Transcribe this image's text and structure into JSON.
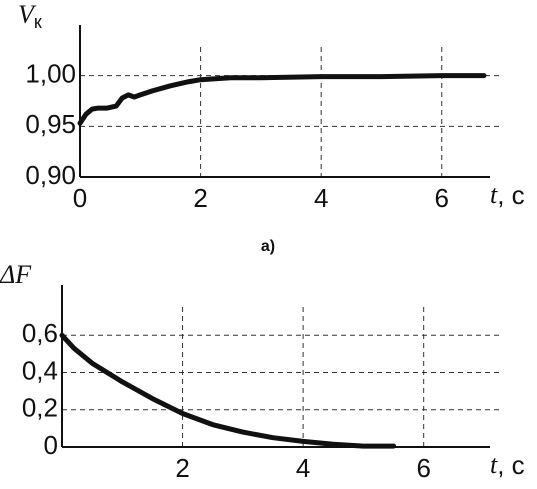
{
  "chart_data": [
    {
      "type": "line",
      "y_label": "V",
      "y_label_sub": "к",
      "x_label": "t",
      "x_unit": ", с",
      "caption": "а)",
      "x": [
        0,
        0.1,
        0.2,
        0.3,
        0.45,
        0.6,
        0.7,
        0.8,
        0.9,
        1.0,
        1.2,
        1.5,
        1.8,
        2.0,
        2.5,
        3.0,
        4.0,
        5.0,
        6.0,
        6.7
      ],
      "series": [
        {
          "color": "#111111",
          "values": [
            0.953,
            0.962,
            0.967,
            0.968,
            0.968,
            0.97,
            0.978,
            0.981,
            0.979,
            0.981,
            0.985,
            0.99,
            0.994,
            0.996,
            0.998,
            0.998,
            0.999,
            0.999,
            1.0,
            1.0
          ]
        }
      ],
      "xlim": [
        0,
        6.8
      ],
      "ylim": [
        0.9,
        1.05
      ],
      "xticks": [
        0,
        2,
        4,
        6
      ],
      "yticks": [
        {
          "value": 0.9,
          "label": "0,90"
        },
        {
          "value": 0.95,
          "label": "0,95"
        },
        {
          "value": 1.0,
          "label": "1,00"
        }
      ],
      "grid": true
    },
    {
      "type": "line",
      "y_label": "ΔF",
      "x_label": "t",
      "x_unit": ", с",
      "x": [
        0,
        0.2,
        0.5,
        1.0,
        1.5,
        2.0,
        2.5,
        3.0,
        3.5,
        4.0,
        4.5,
        5.0,
        5.5
      ],
      "series": [
        {
          "color": "#111111",
          "values": [
            0.6,
            0.53,
            0.45,
            0.35,
            0.26,
            0.18,
            0.12,
            0.08,
            0.05,
            0.03,
            0.015,
            0.005,
            0.005
          ]
        }
      ],
      "xlim": [
        0,
        7.1
      ],
      "ylim": [
        0,
        0.87
      ],
      "xticks": [
        2,
        4,
        6
      ],
      "yticks": [
        0,
        {
          "value": 0.2,
          "label": "0,2"
        },
        {
          "value": 0.4,
          "label": "0,4"
        },
        {
          "value": 0.6,
          "label": "0,6"
        }
      ],
      "grid": true
    }
  ]
}
